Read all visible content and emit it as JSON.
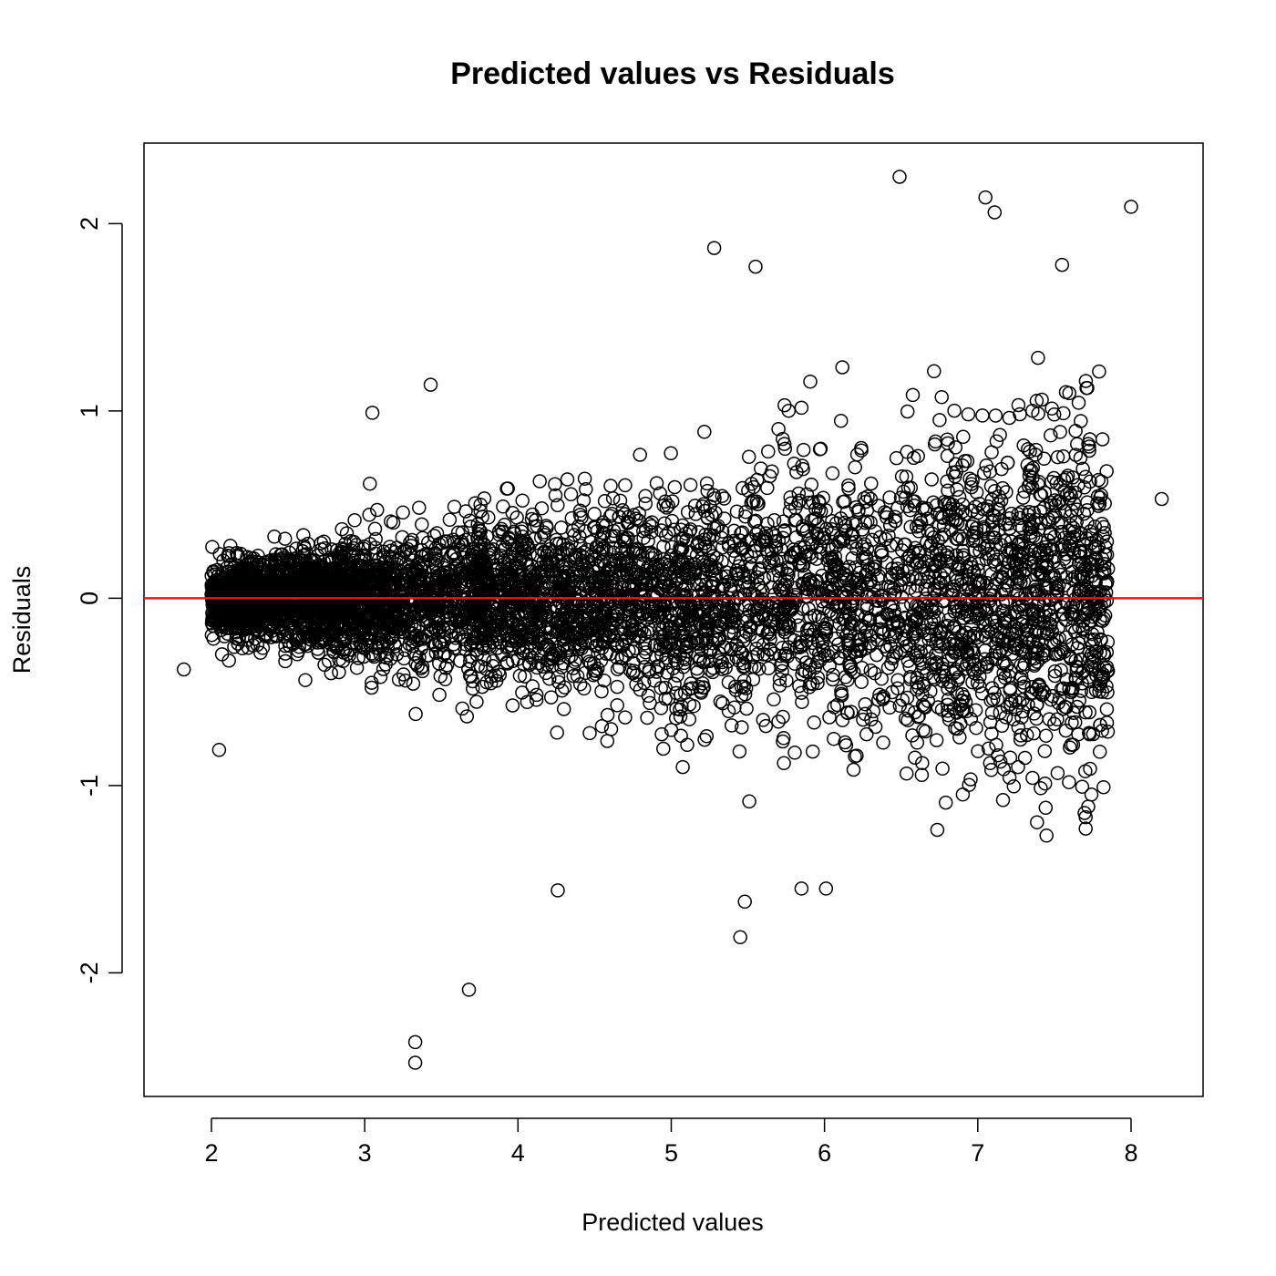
{
  "chart_data": {
    "type": "scatter",
    "title": "Predicted values vs Residuals",
    "xlabel": "Predicted values",
    "ylabel": "Residuals",
    "xlim": [
      1.56,
      8.47
    ],
    "ylim": [
      -2.66,
      2.43
    ],
    "x_ticks": [
      2,
      3,
      4,
      5,
      6,
      7,
      8
    ],
    "y_ticks": [
      -2,
      -1,
      0,
      1,
      2
    ],
    "x_tick_labels": [
      "2",
      "3",
      "4",
      "5",
      "6",
      "7",
      "8"
    ],
    "y_tick_labels": [
      "-2",
      "-1",
      "0",
      "1",
      "2"
    ],
    "grid": false,
    "marker": "open-circle",
    "reference_line": {
      "y": 0,
      "color": "#e8141c"
    },
    "colors": {
      "points": "#000000",
      "frame": "#000000"
    },
    "point_count_estimate": 6000,
    "x_range_observed": [
      1.82,
      8.2
    ],
    "notes_outliers": [
      {
        "x": 3.33,
        "y": -2.37
      },
      {
        "x": 3.33,
        "y": -2.48
      },
      {
        "x": 3.68,
        "y": -2.09
      },
      {
        "x": 6.49,
        "y": 2.25
      },
      {
        "x": 7.05,
        "y": 2.14
      },
      {
        "x": 7.11,
        "y": 2.06
      },
      {
        "x": 8.0,
        "y": 2.09
      },
      {
        "x": 5.28,
        "y": 1.87
      },
      {
        "x": 5.45,
        "y": -1.81
      },
      {
        "x": 5.48,
        "y": -1.62
      },
      {
        "x": 4.26,
        "y": -1.56
      },
      {
        "x": 5.85,
        "y": -1.55
      },
      {
        "x": 6.01,
        "y": -1.55
      },
      {
        "x": 7.55,
        "y": 1.78
      },
      {
        "x": 5.55,
        "y": 1.77
      },
      {
        "x": 3.05,
        "y": 0.99
      },
      {
        "x": 3.43,
        "y": 1.14
      },
      {
        "x": 2.05,
        "y": -0.81
      },
      {
        "x": 1.82,
        "y": -0.38
      },
      {
        "x": 8.2,
        "y": 0.53
      }
    ]
  }
}
